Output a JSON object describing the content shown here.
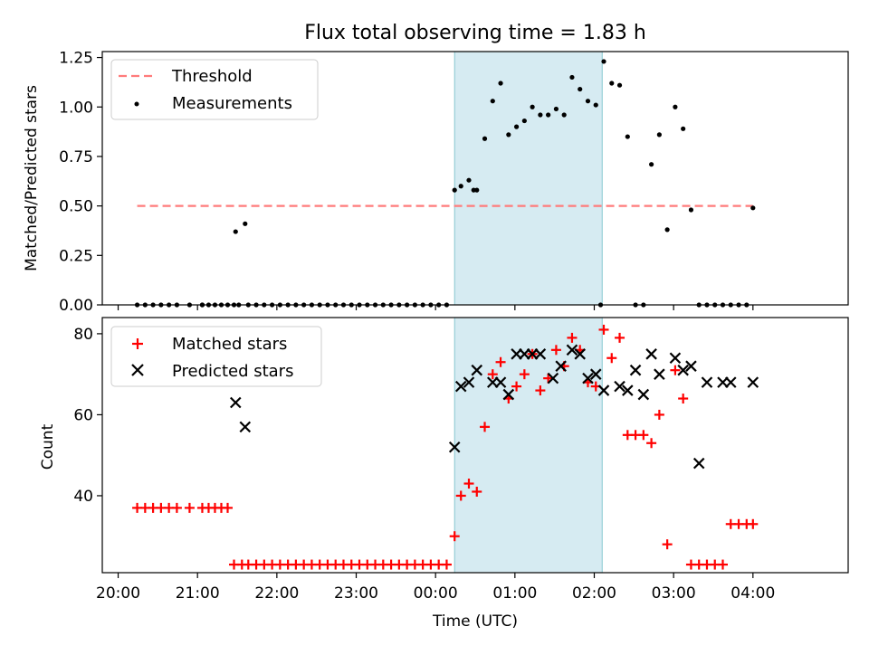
{
  "chart_data": [
    {
      "type": "scatter",
      "title": "Flux total observing time = 1.83 h",
      "ylabel": "Matched/Predicted stars",
      "xlabel": "",
      "xlim": [
        -0.1,
        4.6
      ],
      "ylim": [
        0,
        1.28
      ],
      "yticks": [
        0,
        0.25,
        0.5,
        0.75,
        1.0,
        1.25
      ],
      "ytick_labels": [
        "0.00",
        "0.25",
        "0.50",
        "0.75",
        "1.00",
        "1.25"
      ],
      "shaded_region": {
        "x_start": 2.12,
        "x_end": 3.05,
        "color": "#add8e6"
      },
      "legend_position": "top-left",
      "threshold": {
        "name": "Threshold",
        "y": 0.5,
        "x_start": 0.12,
        "x_end": 4.0,
        "color": "#ff6b6b",
        "style": "dashed"
      },
      "series": [
        {
          "name": "Measurements",
          "marker": "dot",
          "color": "#000000",
          "x": [
            0.12,
            0.17,
            0.22,
            0.27,
            0.32,
            0.37,
            0.45,
            0.53,
            0.53,
            0.57,
            0.61,
            0.65,
            0.69,
            0.73,
            0.76,
            0.82,
            0.87,
            0.92,
            0.97,
            1.02,
            1.07,
            1.12,
            1.17,
            1.22,
            1.27,
            1.32,
            1.37,
            1.42,
            1.47,
            1.52,
            1.57,
            1.62,
            1.67,
            1.72,
            1.77,
            1.82,
            1.87,
            1.92,
            1.97,
            2.02,
            2.07,
            2.12,
            2.16,
            2.21,
            2.26,
            2.31,
            2.36,
            2.41,
            2.46,
            2.51,
            2.56,
            2.61,
            2.66,
            2.71,
            2.76,
            2.81,
            2.86,
            2.91,
            2.96,
            3.01,
            3.06,
            3.11,
            3.16,
            3.21,
            3.26,
            3.31,
            3.36,
            3.41,
            3.46,
            3.51,
            3.56,
            3.61,
            3.66,
            3.71,
            3.76,
            3.81,
            3.86,
            3.91,
            3.96,
            4.0,
            0.74,
            0.8,
            2.24,
            3.04
          ],
          "y": [
            0,
            0,
            0,
            0,
            0,
            0,
            0,
            0,
            0,
            0,
            0,
            0,
            0,
            0,
            0,
            0,
            0,
            0,
            0,
            0,
            0,
            0,
            0,
            0,
            0,
            0,
            0,
            0,
            0,
            0,
            0,
            0,
            0,
            0,
            0,
            0,
            0,
            0,
            0,
            0,
            0,
            0.58,
            0.6,
            0.63,
            0.58,
            0.84,
            1.03,
            1.12,
            0.86,
            0.9,
            0.93,
            1.0,
            0.96,
            0.96,
            0.99,
            0.96,
            1.15,
            1.09,
            1.03,
            1.01,
            1.23,
            1.12,
            1.11,
            0.85,
            0,
            0,
            0.71,
            0.86,
            0.38,
            1.0,
            0.89,
            0.48,
            0,
            0,
            0,
            0,
            0,
            0,
            0,
            0.49,
            0.37,
            0.41,
            0.58,
            0
          ]
        }
      ]
    },
    {
      "type": "scatter",
      "title": "",
      "xlabel": "Time (UTC)",
      "ylabel": "Count",
      "xlim": [
        -0.1,
        4.6
      ],
      "ylim": [
        21,
        84
      ],
      "yticks": [
        40,
        60,
        80
      ],
      "ytick_labels": [
        "40",
        "60",
        "80"
      ],
      "xticks": [
        0,
        0.5,
        1,
        1.5,
        2,
        2.5,
        3,
        3.5,
        4
      ],
      "xtick_labels": [
        "20:00",
        "21:00",
        "22:00",
        "23:00",
        "00:00",
        "01:00",
        "02:00",
        "03:00",
        "04:00"
      ],
      "shaded_region": {
        "x_start": 2.12,
        "x_end": 3.05,
        "color": "#add8e6"
      },
      "legend_position": "top-left",
      "series": [
        {
          "name": "Matched stars",
          "marker": "plus",
          "color": "#ff0000",
          "x": [
            0.12,
            0.17,
            0.22,
            0.27,
            0.32,
            0.37,
            0.45,
            0.53,
            0.57,
            0.61,
            0.65,
            0.69,
            0.73,
            0.78,
            0.82,
            0.87,
            0.92,
            0.97,
            1.02,
            1.07,
            1.12,
            1.17,
            1.22,
            1.27,
            1.32,
            1.37,
            1.42,
            1.47,
            1.52,
            1.57,
            1.62,
            1.67,
            1.72,
            1.77,
            1.82,
            1.87,
            1.92,
            1.97,
            2.02,
            2.07,
            2.12,
            2.16,
            2.21,
            2.26,
            2.31,
            2.36,
            2.41,
            2.46,
            2.51,
            2.56,
            2.61,
            2.66,
            2.71,
            2.76,
            2.81,
            2.86,
            2.91,
            2.96,
            3.01,
            3.06,
            3.11,
            3.16,
            3.21,
            3.26,
            3.31,
            3.36,
            3.41,
            3.46,
            3.51,
            3.56,
            3.61,
            3.66,
            3.71,
            3.76,
            3.81,
            3.86,
            3.91,
            3.96,
            4.0
          ],
          "y": [
            37,
            37,
            37,
            37,
            37,
            37,
            37,
            37,
            37,
            37,
            37,
            37,
            23,
            23,
            23,
            23,
            23,
            23,
            23,
            23,
            23,
            23,
            23,
            23,
            23,
            23,
            23,
            23,
            23,
            23,
            23,
            23,
            23,
            23,
            23,
            23,
            23,
            23,
            23,
            23,
            30,
            40,
            43,
            41,
            57,
            70,
            73,
            64,
            67,
            70,
            75,
            66,
            69,
            76,
            72,
            79,
            76,
            68,
            67,
            81,
            74,
            79,
            55,
            55,
            55,
            53,
            60,
            28,
            71,
            64,
            23,
            23,
            23,
            23,
            23,
            33,
            33,
            33,
            33
          ]
        },
        {
          "name": "Predicted stars",
          "marker": "x",
          "color": "#000000",
          "x": [
            0.74,
            0.8,
            2.12,
            2.16,
            2.21,
            2.26,
            2.36,
            2.41,
            2.46,
            2.51,
            2.56,
            2.61,
            2.66,
            2.74,
            2.79,
            2.86,
            2.91,
            2.96,
            3.01,
            3.06,
            3.16,
            3.21,
            3.26,
            3.31,
            3.36,
            3.41,
            3.51,
            3.56,
            3.61,
            3.66,
            3.71,
            3.81,
            3.86,
            4.0
          ],
          "y": [
            63,
            57,
            52,
            67,
            68,
            71,
            68,
            68,
            65,
            75,
            75,
            75,
            75,
            69,
            72,
            76,
            75,
            69,
            70,
            66,
            67,
            66,
            71,
            65,
            75,
            70,
            74,
            71,
            72,
            48,
            68,
            68,
            68,
            68
          ]
        }
      ]
    }
  ]
}
